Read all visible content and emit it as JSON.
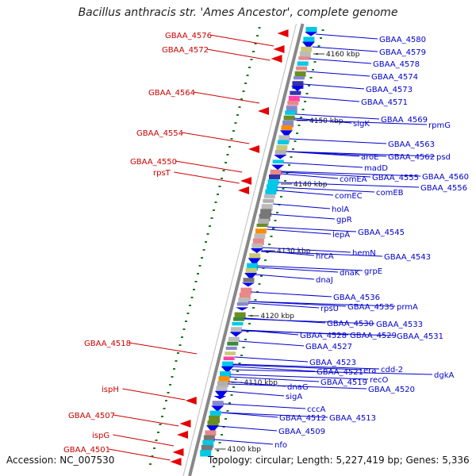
{
  "title": "Bacillus anthracis str. 'Ames Ancestor', complete genome",
  "footer": {
    "accession": "Accession: NC_007530",
    "topology": "Topology: circular; Length: 5,227,419 bp; Genes: 5,336"
  },
  "colors": {
    "left_label": "#cc0000",
    "right_label": "#0000cc",
    "backbone": "#888888",
    "reverse_arrow": "#e60000",
    "forward_arrow": "#0000ee",
    "tick": "#1a7a1a"
  },
  "coordinates": [
    {
      "label": "4160 kbp"
    },
    {
      "label": "4150 kbp"
    },
    {
      "label": "4140 kbp"
    },
    {
      "label": "4130 kbp"
    },
    {
      "label": "4120 kbp"
    },
    {
      "label": "4110 kbp"
    },
    {
      "label": "4100 kbp"
    }
  ],
  "left_labels": [
    {
      "text": "GBAA_4576"
    },
    {
      "text": "GBAA_4572"
    },
    {
      "text": "GBAA_4564"
    },
    {
      "text": "GBAA_4554"
    },
    {
      "text": "GBAA_4550"
    },
    {
      "text": "rpsT"
    },
    {
      "text": "GBAA_4518"
    },
    {
      "text": "ispH"
    },
    {
      "text": "GBAA_4507"
    },
    {
      "text": "ispG"
    },
    {
      "text": "GBAA_4501"
    }
  ],
  "right_labels": [
    {
      "text": "GBAA_4580"
    },
    {
      "text": "GBAA_4579"
    },
    {
      "text": "GBAA_4578"
    },
    {
      "text": "GBAA_4574"
    },
    {
      "text": "GBAA_4573"
    },
    {
      "text": "GBAA_4571"
    },
    {
      "text": "GBAA_4569"
    },
    {
      "text": "rpmG"
    },
    {
      "text": "sigK"
    },
    {
      "text": "GBAA_4563"
    },
    {
      "text": "aroE"
    },
    {
      "text": "GBAA_4562"
    },
    {
      "text": "psd"
    },
    {
      "text": "madD"
    },
    {
      "text": "comEA"
    },
    {
      "text": "GBAA_4555"
    },
    {
      "text": "GBAA_4560"
    },
    {
      "text": "GBAA_4556"
    },
    {
      "text": "comEC"
    },
    {
      "text": "comEB"
    },
    {
      "text": "holA"
    },
    {
      "text": "gpR"
    },
    {
      "text": "lepA"
    },
    {
      "text": "GBAA_4545"
    },
    {
      "text": "hemN"
    },
    {
      "text": "hrcA"
    },
    {
      "text": "GBAA_4543"
    },
    {
      "text": "dnaK"
    },
    {
      "text": "grpE"
    },
    {
      "text": "dnaJ"
    },
    {
      "text": "GBAA_4536"
    },
    {
      "text": "rpsU"
    },
    {
      "text": "GBAA_4535"
    },
    {
      "text": "prmA"
    },
    {
      "text": "GBAA_4530"
    },
    {
      "text": "GBAA_4533"
    },
    {
      "text": "GBAA_4528"
    },
    {
      "text": "GBAA_4529"
    },
    {
      "text": "GBAA_4531"
    },
    {
      "text": "GBAA_4527"
    },
    {
      "text": "GBAA_4523"
    },
    {
      "text": "era"
    },
    {
      "text": "cdd-2"
    },
    {
      "text": "GBAA_4521"
    },
    {
      "text": "dgkA"
    },
    {
      "text": "recO"
    },
    {
      "text": "GBAA_4519"
    },
    {
      "text": "GBAA_4520"
    },
    {
      "text": "dnaG"
    },
    {
      "text": "sigA"
    },
    {
      "text": "cccA"
    },
    {
      "text": "GBAA_4512"
    },
    {
      "text": "GBAA_4513"
    },
    {
      "text": "GBAA_4509"
    },
    {
      "text": "nfo"
    }
  ]
}
